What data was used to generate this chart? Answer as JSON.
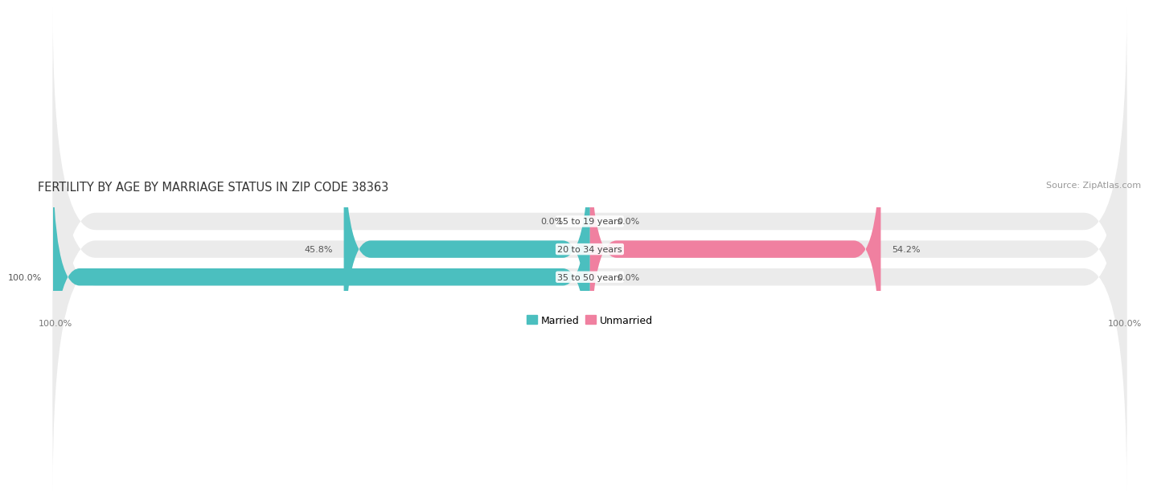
{
  "title": "FERTILITY BY AGE BY MARRIAGE STATUS IN ZIP CODE 38363",
  "source": "Source: ZipAtlas.com",
  "categories": [
    "15 to 19 years",
    "20 to 34 years",
    "35 to 50 years"
  ],
  "married_values": [
    0.0,
    45.8,
    100.0
  ],
  "unmarried_values": [
    0.0,
    54.2,
    0.0
  ],
  "married_color": "#4bbfbf",
  "unmarried_color": "#f080a0",
  "bar_height": 0.62,
  "title_fontsize": 10.5,
  "source_fontsize": 8,
  "label_fontsize": 8,
  "category_fontsize": 8,
  "legend_fontsize": 9,
  "axis_label_left": "100.0%",
  "axis_label_right": "100.0%",
  "background_color": "#ffffff",
  "bar_background": "#ebebeb",
  "rounding_size": 8
}
